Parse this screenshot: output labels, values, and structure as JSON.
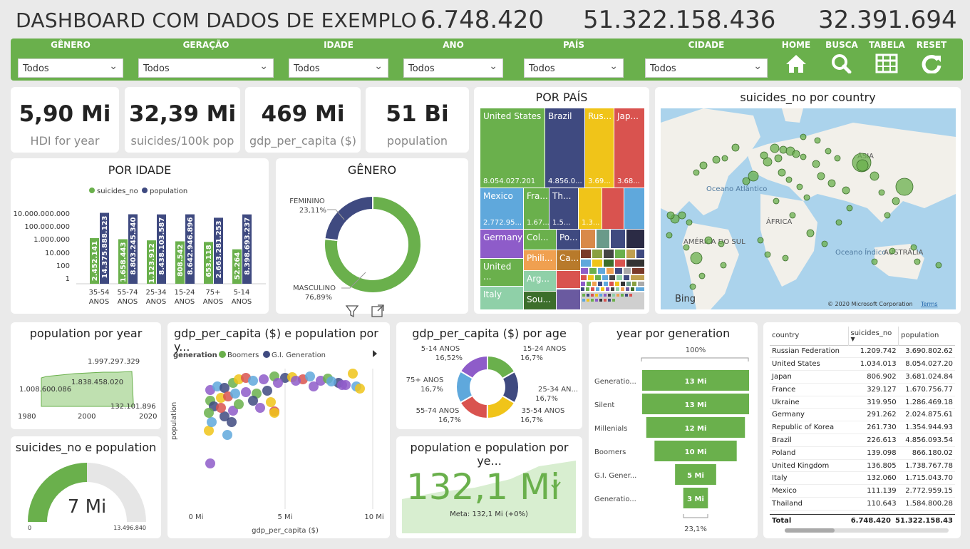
{
  "header": {
    "title": "DASHBOARD COM DADOS DE EXEMPLO",
    "kpi1": "6.748.420",
    "kpi2": "51.322.158.436",
    "kpi3": "32.391.694"
  },
  "filters": [
    {
      "label": "GÊNERO",
      "value": "Todos"
    },
    {
      "label": "GERAÇÃO",
      "value": "Todos"
    },
    {
      "label": "IDADE",
      "value": "Todos"
    },
    {
      "label": "ANO",
      "value": "Todos"
    },
    {
      "label": "PAÍS",
      "value": "Todos"
    },
    {
      "label": "CIDADE",
      "value": "Todos"
    }
  ],
  "nav": {
    "home": "HOME",
    "search": "BUSCA",
    "table": "TABELA",
    "reset": "RESET"
  },
  "cards": [
    {
      "value": "5,90 Mi",
      "label": "HDI for year"
    },
    {
      "value": "32,39 Mi",
      "label": "suicides/100k pop"
    },
    {
      "value": "469 Mi",
      "label": "gdp_per_capita ($)"
    },
    {
      "value": "51 Bi",
      "label": "population"
    }
  ],
  "treemap": {
    "title": "POR PAÍS",
    "us": "United States",
    "us_v": "8.054.027.201",
    "br": "Brazil",
    "br_v": "4.856.0...",
    "ru": "Rus...",
    "ru_v": "3.69...",
    "jp": "Jap...",
    "jp_v": "3.68...",
    "mx": "Mexico",
    "mx_v": "2.772.95...",
    "fr": "Fra...",
    "fr_v": "1.67...",
    "th": "Th...",
    "th_v": "1.5...",
    "x1_v": "1.3...",
    "de": "Germany",
    "col": "Col...",
    "po": "Po...",
    "uk": "United ...",
    "phi": "Phili...",
    "ca": "Ca...",
    "it": "Italy",
    "arg": "Arg...",
    "sou": "Sou..."
  },
  "map": {
    "title": "suicides_no por country",
    "asia": "ÁSIA",
    "oceano_atl": "Oceano Atlântico",
    "africa": "ÁFRICA",
    "americas": "AMÉRICA DO SUL",
    "oceano_ind": "Oceano Índico",
    "australia": "AUSTRÁLIA",
    "copy": "© 2020 Microsoft Corporation",
    "terms": "Terms",
    "bing": "Bing"
  },
  "idade": {
    "title": "POR IDADE",
    "legend1": "suicides_no",
    "legend2": "population",
    "yticks": [
      "10.000.000.000",
      "100.000.000",
      "1.000.000",
      "10.000",
      "100",
      "1"
    ]
  },
  "genero": {
    "title": "GÊNERO",
    "fem": "FEMININO",
    "fem_v": "23,11%",
    "masc": "MASCULINO",
    "masc_v": "76,89%"
  },
  "popyear": {
    "title": "population por year",
    "v1": "1.997.297.329",
    "v2": "1.838.458.020",
    "v3": "1.008.600.086",
    "v4": "132.101.896",
    "x1": "1980",
    "x2": "2000",
    "x3": "2020"
  },
  "scatter": {
    "title": "gdp_per_capita ($) e population por y...",
    "legend_title": "generation",
    "l1": "Boomers",
    "l2": "G.I. Generation",
    "ylabel": "population",
    "xlabel": "gdp_per_capita ($)",
    "x0": "0 Mi",
    "x1": "5 Mi",
    "x2": "10 Mi"
  },
  "agedonut": {
    "title": "gdp_per_capita ($) por age",
    "a1": "5-14 ANOS",
    "a1v": "16,52%",
    "a2": "15-24 ANOS",
    "a2v": "16,7%",
    "a3": "75+ ANOS",
    "a3v": "16,7%",
    "a4": "25-34 AN...",
    "a4v": "16,7%",
    "a5": "55-74 ANOS",
    "a5v": "16,7%",
    "a6": "35-54 ANOS",
    "a6v": "16,7%"
  },
  "funnel": {
    "title": "year por generation",
    "top": "100%",
    "bottom": "23,1%"
  },
  "gauge": {
    "title": "suicides_no e population",
    "value": "7 Mi",
    "min": "0",
    "max": "13.496.840"
  },
  "kpi": {
    "title": "population e population por ye...",
    "value": "132,1 Mi",
    "meta": "Meta: 132,1 Mi (+0%)"
  },
  "table": {
    "headers": [
      "country",
      "suicides_no",
      "population"
    ],
    "rows": [
      [
        "Russian Federation",
        "1.209.742",
        "3.690.802.62"
      ],
      [
        "United States",
        "1.034.013",
        "8.054.027.20"
      ],
      [
        "Japan",
        "806.902",
        "3.681.024.84"
      ],
      [
        "France",
        "329.127",
        "1.670.756.77"
      ],
      [
        "Ukraine",
        "319.950",
        "1.286.469.18"
      ],
      [
        "Germany",
        "291.262",
        "2.024.875.61"
      ],
      [
        "Republic of Korea",
        "261.730",
        "1.354.944.93"
      ],
      [
        "Brazil",
        "226.613",
        "4.856.093.54"
      ],
      [
        "Poland",
        "139.098",
        "866.180.02"
      ],
      [
        "United Kingdom",
        "136.805",
        "1.738.767.78"
      ],
      [
        "Italy",
        "132.060",
        "1.715.043.70"
      ],
      [
        "Mexico",
        "111.139",
        "2.772.959.15"
      ],
      [
        "Thailand",
        "110.643",
        "1.584.800.28"
      ]
    ],
    "total": [
      "Total",
      "6.748.420",
      "51.322.158.43"
    ]
  },
  "chart_data": [
    {
      "type": "bar",
      "title": "POR IDADE",
      "categories": [
        "35-54 ANOS",
        "55-74 ANOS",
        "25-34 ANOS",
        "15-24 ANOS",
        "75+ ANOS",
        "5-14 ANOS"
      ],
      "series": [
        {
          "name": "suicides_no",
          "values": [
            2452141,
            1658443,
            1123912,
            808542,
            653118,
            52264
          ],
          "labels": [
            "2.452.141",
            "1.658.443",
            "1.123.912",
            "808.542",
            "653.118",
            "52.264"
          ],
          "color": "#6ab04c"
        },
        {
          "name": "population",
          "values": [
            14375888123,
            8803245340,
            8438103587,
            8642946896,
            2663281253,
            8398693237
          ],
          "labels": [
            "14.375.888.123",
            "8.803.245.340",
            "8.438.103.587",
            "8.642.946.896",
            "2.663.281.253",
            "8.398.693.237"
          ],
          "color": "#3f4a80"
        }
      ],
      "yscale": "log"
    },
    {
      "type": "pie",
      "title": "GÊNERO",
      "labels": [
        "FEMININO",
        "MASCULINO"
      ],
      "values": [
        23.11,
        76.89
      ],
      "colors": [
        "#3f4a80",
        "#6ab04c"
      ]
    },
    {
      "type": "pie",
      "title": "gdp_per_capita ($) por age",
      "labels": [
        "15-24 ANOS",
        "25-34 AN...",
        "35-54 ANOS",
        "55-74 ANOS",
        "75+ ANOS",
        "5-14 ANOS"
      ],
      "values": [
        16.7,
        16.7,
        16.7,
        16.7,
        16.7,
        16.52
      ],
      "colors": [
        "#6ab04c",
        "#3f4a80",
        "#f0c419",
        "#d9534f",
        "#5fa8dc",
        "#8e5cc9"
      ]
    },
    {
      "type": "bar",
      "title": "year por generation",
      "categories": [
        "Generatio...",
        "Silent",
        "Millenials",
        "Boomers",
        "G.I. Gener...",
        "Generatio..."
      ],
      "values": [
        13,
        13,
        12,
        10,
        5,
        3
      ],
      "labels": [
        "13 Mi",
        "13 Mi",
        "12 Mi",
        "10 Mi",
        "5 Mi",
        "3 Mi"
      ]
    }
  ]
}
